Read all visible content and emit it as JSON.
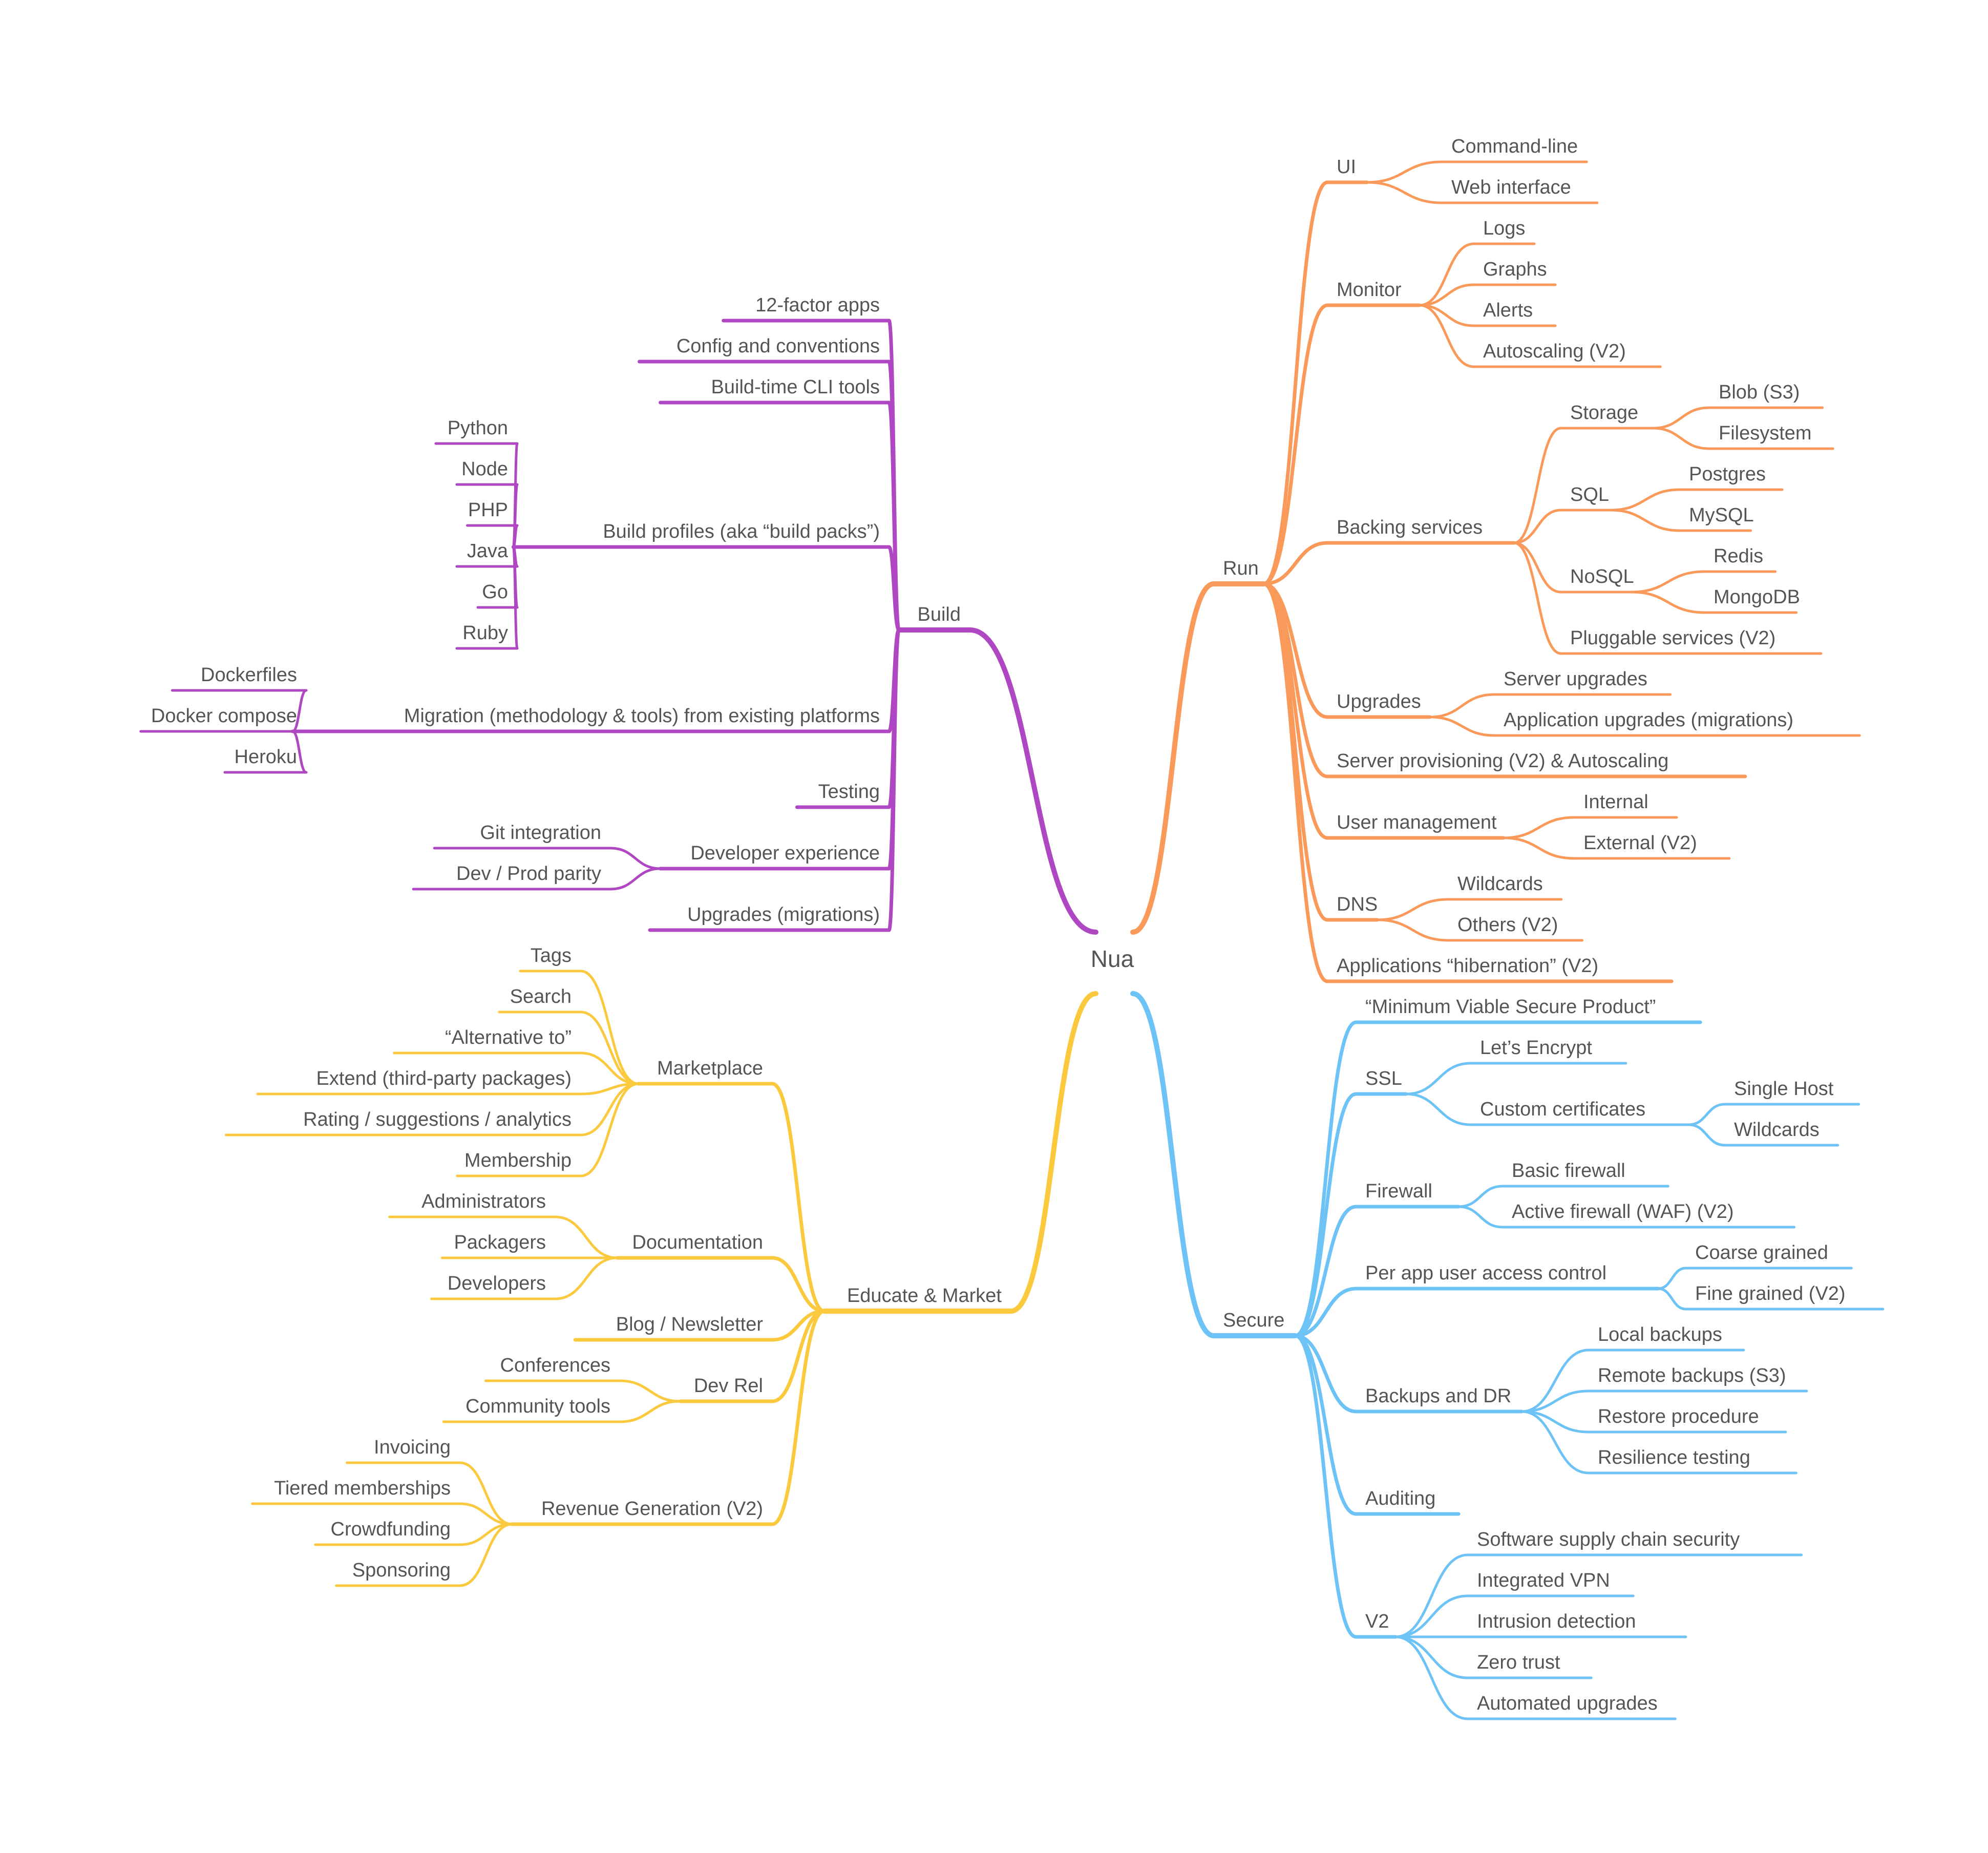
{
  "root": {
    "label": "Nua",
    "children": [
      {
        "label": "Build",
        "color": "#B047C2",
        "children": [
          {
            "label": "12-factor apps"
          },
          {
            "label": "Config and conventions"
          },
          {
            "label": "Build-time CLI tools"
          },
          {
            "label": "Build profiles (aka “build packs”)",
            "children": [
              {
                "label": "Python"
              },
              {
                "label": "Node"
              },
              {
                "label": "PHP"
              },
              {
                "label": "Java"
              },
              {
                "label": "Go"
              },
              {
                "label": "Ruby"
              }
            ]
          },
          {
            "label": "Migration (methodology & tools) from existing platforms",
            "children": [
              {
                "label": "Dockerfiles"
              },
              {
                "label": "Docker compose"
              },
              {
                "label": "Heroku"
              }
            ]
          },
          {
            "label": "Testing"
          },
          {
            "label": "Developer experience",
            "children": [
              {
                "label": "Git integration"
              },
              {
                "label": "Dev / Prod parity"
              }
            ]
          },
          {
            "label": "Upgrades (migrations)"
          }
        ]
      },
      {
        "label": "Educate & Market",
        "color": "#FAC93D",
        "children": [
          {
            "label": "Marketplace",
            "children": [
              {
                "label": "Tags"
              },
              {
                "label": "Search"
              },
              {
                "label": "“Alternative to”"
              },
              {
                "label": "Extend (third-party packages)"
              },
              {
                "label": "Rating / suggestions / analytics"
              },
              {
                "label": "Membership"
              }
            ]
          },
          {
            "label": "Documentation",
            "children": [
              {
                "label": "Administrators"
              },
              {
                "label": "Packagers"
              },
              {
                "label": "Developers"
              }
            ]
          },
          {
            "label": "Blog / Newsletter"
          },
          {
            "label": "Dev Rel",
            "children": [
              {
                "label": "Conferences"
              },
              {
                "label": "Community tools"
              }
            ]
          },
          {
            "label": "Revenue Generation (V2)",
            "children": [
              {
                "label": "Invoicing"
              },
              {
                "label": "Tiered memberships"
              },
              {
                "label": "Crowdfunding"
              },
              {
                "label": "Sponsoring"
              }
            ]
          }
        ]
      },
      {
        "label": "Run",
        "color": "#FA9A5A",
        "children": [
          {
            "label": "UI",
            "children": [
              {
                "label": "Command-line"
              },
              {
                "label": "Web interface"
              }
            ]
          },
          {
            "label": "Monitor",
            "children": [
              {
                "label": "Logs"
              },
              {
                "label": "Graphs"
              },
              {
                "label": "Alerts"
              },
              {
                "label": "Autoscaling (V2)"
              }
            ]
          },
          {
            "label": "Backing services",
            "children": [
              {
                "label": "Storage",
                "children": [
                  {
                    "label": "Blob (S3)"
                  },
                  {
                    "label": "Filesystem"
                  }
                ]
              },
              {
                "label": "SQL",
                "children": [
                  {
                    "label": "Postgres"
                  },
                  {
                    "label": "MySQL"
                  }
                ]
              },
              {
                "label": "NoSQL",
                "children": [
                  {
                    "label": "Redis"
                  },
                  {
                    "label": "MongoDB"
                  }
                ]
              },
              {
                "label": "Pluggable services (V2)"
              }
            ]
          },
          {
            "label": "Upgrades",
            "children": [
              {
                "label": "Server upgrades"
              },
              {
                "label": "Application upgrades (migrations)"
              }
            ]
          },
          {
            "label": "Server provisioning (V2) & Autoscaling"
          },
          {
            "label": "User management",
            "children": [
              {
                "label": "Internal"
              },
              {
                "label": "External (V2)"
              }
            ]
          },
          {
            "label": "DNS",
            "children": [
              {
                "label": "Wildcards"
              },
              {
                "label": "Others (V2)"
              }
            ]
          },
          {
            "label": "Applications “hibernation” (V2)"
          }
        ]
      },
      {
        "label": "Secure",
        "color": "#6DC2F6",
        "children": [
          {
            "label": "“Minimum Viable Secure Product”"
          },
          {
            "label": "SSL",
            "children": [
              {
                "label": "Let’s Encrypt"
              },
              {
                "label": "Custom certificates",
                "children": [
                  {
                    "label": "Single Host"
                  },
                  {
                    "label": "Wildcards"
                  }
                ]
              }
            ]
          },
          {
            "label": "Firewall",
            "children": [
              {
                "label": "Basic firewall"
              },
              {
                "label": "Active firewall (WAF) (V2)"
              }
            ]
          },
          {
            "label": "Per app user access control",
            "children": [
              {
                "label": "Coarse grained"
              },
              {
                "label": "Fine grained (V2)"
              }
            ]
          },
          {
            "label": "Backups and DR",
            "children": [
              {
                "label": "Local backups"
              },
              {
                "label": "Remote backups (S3)"
              },
              {
                "label": "Restore procedure"
              },
              {
                "label": "Resilience testing"
              }
            ]
          },
          {
            "label": "Auditing"
          },
          {
            "label": "V2",
            "children": [
              {
                "label": "Software supply chain security"
              },
              {
                "label": "Integrated VPN"
              },
              {
                "label": "Intrusion detection"
              },
              {
                "label": "Zero trust"
              },
              {
                "label": "Automated upgrades"
              }
            ]
          }
        ]
      }
    ]
  }
}
